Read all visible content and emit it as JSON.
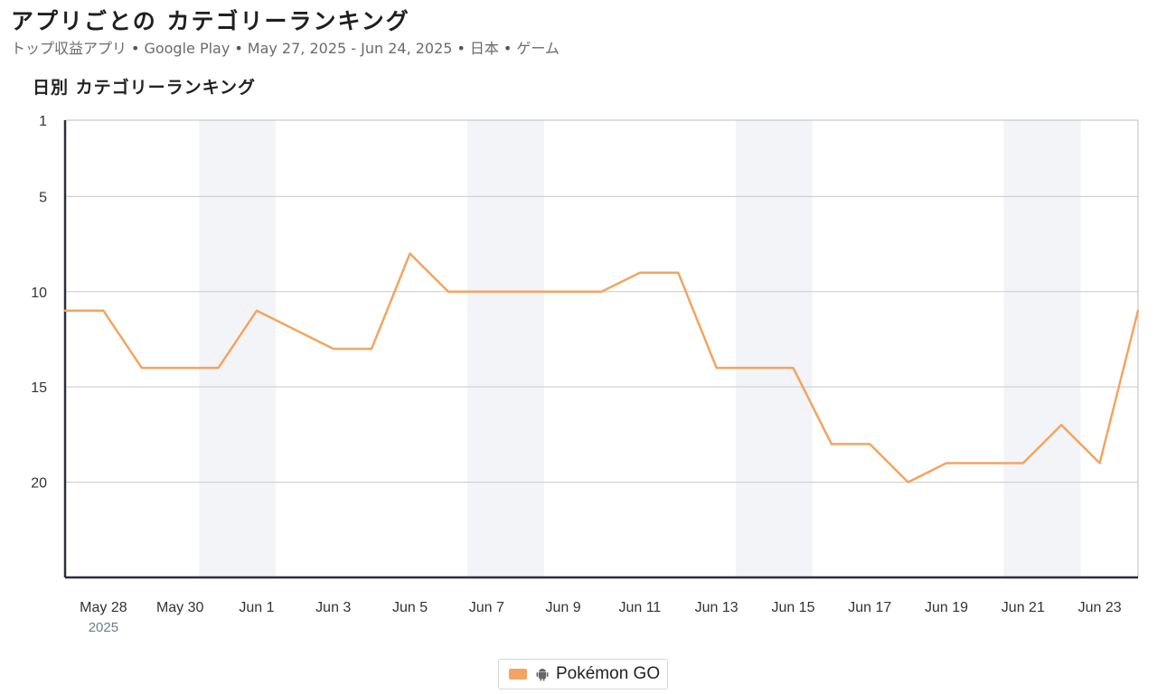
{
  "header": {
    "title": "アプリごとの カテゴリーランキング",
    "subtitle_parts": [
      "トップ収益アプリ",
      "Google Play",
      "May 27, 2025 - Jun 24, 2025",
      "日本",
      "ゲーム"
    ],
    "separator": "•"
  },
  "chart_heading": "日別 カテゴリーランキング",
  "legend": {
    "label": "Pokémon GO",
    "icon": "android-icon"
  },
  "colors": {
    "series": "#f4a460",
    "shade": "#f2f4f7",
    "grid": "#c9c9c9",
    "axis": "#2a2f3a"
  },
  "chart_data": {
    "type": "line",
    "x": [
      "2025-05-27",
      "2025-05-28",
      "2025-05-29",
      "2025-05-30",
      "2025-05-31",
      "2025-06-01",
      "2025-06-02",
      "2025-06-03",
      "2025-06-04",
      "2025-06-05",
      "2025-06-06",
      "2025-06-07",
      "2025-06-08",
      "2025-06-09",
      "2025-06-10",
      "2025-06-11",
      "2025-06-12",
      "2025-06-13",
      "2025-06-14",
      "2025-06-15",
      "2025-06-16",
      "2025-06-17",
      "2025-06-18",
      "2025-06-19",
      "2025-06-20",
      "2025-06-21",
      "2025-06-22",
      "2025-06-23",
      "2025-06-24"
    ],
    "series": [
      {
        "name": "Pokémon GO",
        "values": [
          11,
          11,
          14,
          14,
          14,
          11,
          12,
          13,
          13,
          8,
          10,
          10,
          10,
          10,
          10,
          9,
          9,
          14,
          14,
          14,
          18,
          18,
          20,
          19,
          19,
          19,
          17,
          19,
          11
        ]
      }
    ],
    "y_ticks": [
      1,
      5,
      10,
      15,
      20
    ],
    "ylim": [
      1,
      25
    ],
    "y_reversed": true,
    "x_tick_labels": [
      "May 28",
      "May 30",
      "Jun 1",
      "Jun 3",
      "Jun 5",
      "Jun 7",
      "Jun 9",
      "Jun 11",
      "Jun 13",
      "Jun 15",
      "Jun 17",
      "Jun 19",
      "Jun 21",
      "Jun 23"
    ],
    "x_tick_dates": [
      "2025-05-28",
      "2025-05-30",
      "2025-06-01",
      "2025-06-03",
      "2025-06-05",
      "2025-06-07",
      "2025-06-09",
      "2025-06-11",
      "2025-06-13",
      "2025-06-15",
      "2025-06-17",
      "2025-06-19",
      "2025-06-21",
      "2025-06-23"
    ],
    "year_label": "2025",
    "weekend_bands": [
      [
        "2025-05-31",
        "2025-06-01"
      ],
      [
        "2025-06-07",
        "2025-06-08"
      ],
      [
        "2025-06-14",
        "2025-06-15"
      ],
      [
        "2025-06-21",
        "2025-06-22"
      ]
    ],
    "grid": true,
    "legend_position": "bottom-center"
  }
}
